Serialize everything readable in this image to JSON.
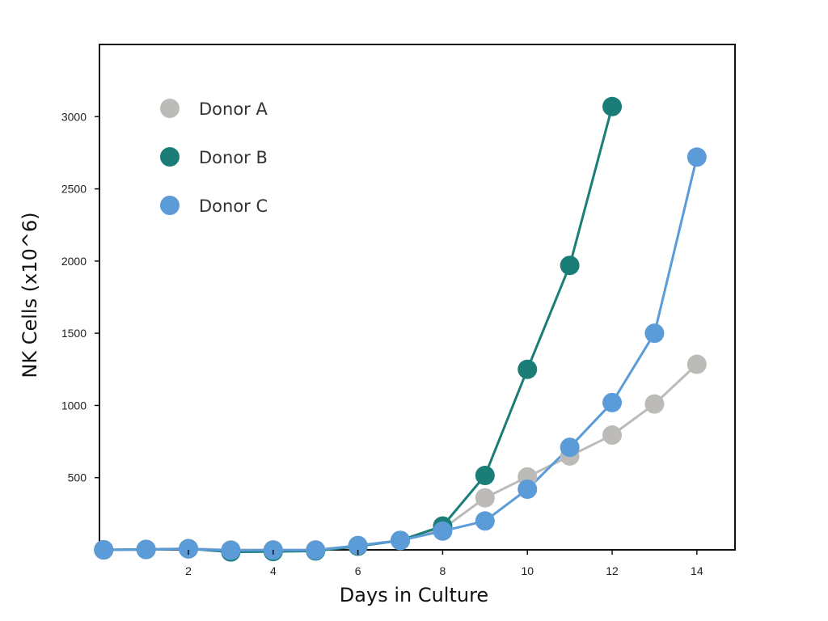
{
  "chart_data": {
    "type": "line",
    "title": "",
    "xlabel": "Days in Culture",
    "ylabel": "NK Cells (x10^6)",
    "xlim": [
      -0.1,
      14.9
    ],
    "ylim": [
      0,
      3500
    ],
    "x_ticks": [
      2,
      4,
      6,
      8,
      10,
      12,
      14
    ],
    "y_ticks": [
      500,
      1000,
      1500,
      2000,
      2500,
      3000
    ],
    "grid": false,
    "legend_position": "top-left",
    "series": [
      {
        "name": "Donor A",
        "color": "#bdbbb8",
        "x": [
          0,
          1,
          2,
          3,
          4,
          5,
          6,
          7,
          8,
          9,
          10,
          11,
          12,
          13,
          14
        ],
        "y": [
          0,
          3,
          8,
          0,
          0,
          0,
          25,
          65,
          145,
          360,
          505,
          650,
          795,
          1010,
          1285
        ]
      },
      {
        "name": "Donor B",
        "color": "#1a7d78",
        "x": [
          0,
          1,
          2,
          3,
          4,
          5,
          6,
          7,
          8,
          9,
          10,
          11,
          12
        ],
        "y": [
          0,
          3,
          8,
          -15,
          -12,
          -8,
          25,
          65,
          165,
          515,
          1250,
          1970,
          3070
        ]
      },
      {
        "name": "Donor C",
        "color": "#5b9bd8",
        "x": [
          0,
          1,
          2,
          3,
          4,
          5,
          6,
          7,
          8,
          9,
          10,
          11,
          12,
          13,
          14
        ],
        "y": [
          0,
          2,
          6,
          -4,
          -2,
          -2,
          30,
          65,
          130,
          200,
          420,
          710,
          1020,
          1500,
          2720
        ]
      }
    ]
  }
}
